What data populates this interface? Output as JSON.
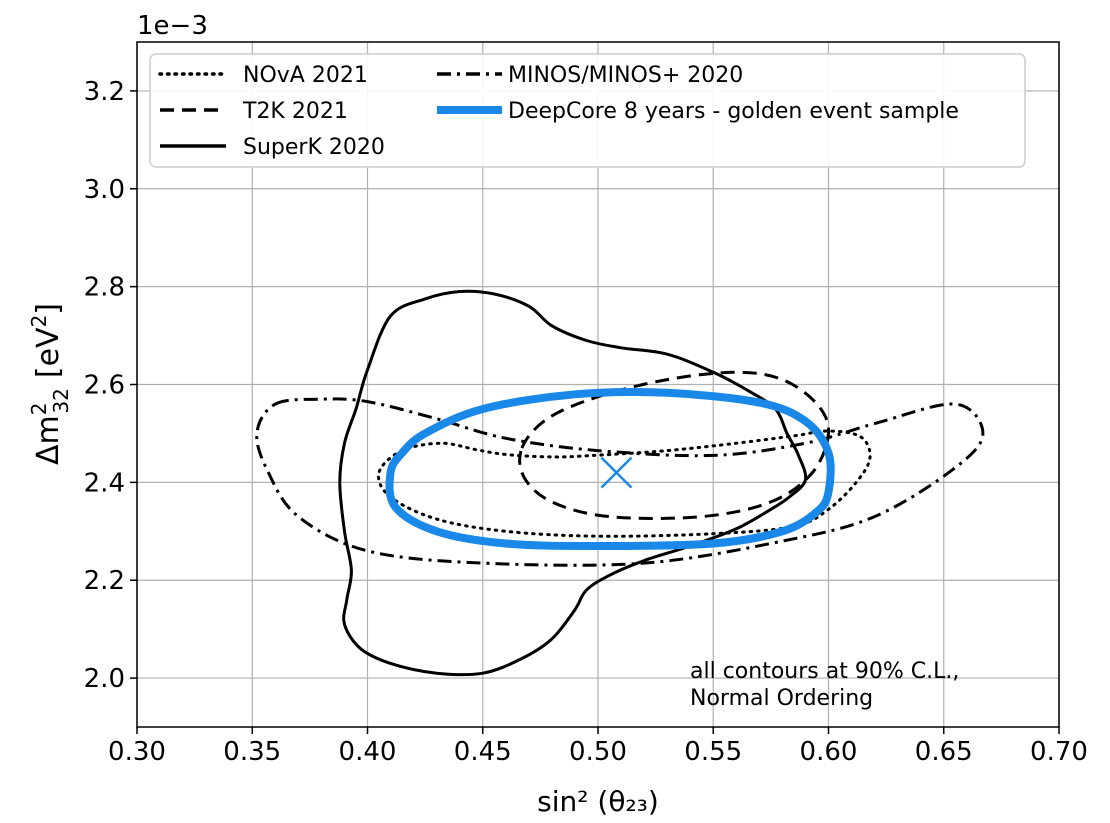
{
  "chart_data": {
    "type": "line",
    "xlabel": "sin² (θ₂₃)",
    "ylabel_main": "Δm",
    "ylabel_sup": "2",
    "ylabel_sub": "32",
    "ylabel_unit_open": "[eV",
    "ylabel_unit_sup": "2",
    "ylabel_unit_close": "]",
    "offset_text": "1e−3",
    "xlim": [
      0.3,
      0.7
    ],
    "ylim": [
      1.9,
      3.3
    ],
    "grid": true,
    "xticks": [
      0.3,
      0.35,
      0.4,
      0.45,
      0.5,
      0.55,
      0.6,
      0.65,
      0.7
    ],
    "xtick_labels": [
      "0.30",
      "0.35",
      "0.40",
      "0.45",
      "0.50",
      "0.55",
      "0.60",
      "0.65",
      "0.70"
    ],
    "yticks": [
      2.0,
      2.2,
      2.4,
      2.6,
      2.8,
      3.0,
      3.2
    ],
    "ytick_labels": [
      "2.0",
      "2.2",
      "2.4",
      "2.6",
      "2.8",
      "3.0",
      "3.2"
    ],
    "legend_position": "top",
    "annotation": [
      "all contours at 90% C.L.,",
      "Normal Ordering"
    ],
    "best_fit": {
      "x": 0.508,
      "y": 2.42,
      "marker": "x",
      "color": "#1a88e8"
    },
    "series": [
      {
        "name": "NOvA 2021",
        "style": "dotted",
        "color": "#000000",
        "points": [
          [
            0.498,
            2.455
          ],
          [
            0.53,
            2.465
          ],
          [
            0.56,
            2.48
          ],
          [
            0.585,
            2.495
          ],
          [
            0.6,
            2.505
          ],
          [
            0.614,
            2.493
          ],
          [
            0.618,
            2.45
          ],
          [
            0.612,
            2.4
          ],
          [
            0.6,
            2.345
          ],
          [
            0.585,
            2.31
          ],
          [
            0.55,
            2.295
          ],
          [
            0.5,
            2.29
          ],
          [
            0.46,
            2.3
          ],
          [
            0.43,
            2.325
          ],
          [
            0.41,
            2.37
          ],
          [
            0.405,
            2.42
          ],
          [
            0.415,
            2.465
          ],
          [
            0.432,
            2.48
          ],
          [
            0.447,
            2.467
          ],
          [
            0.46,
            2.457
          ],
          [
            0.48,
            2.452
          ],
          [
            0.498,
            2.455
          ]
        ]
      },
      {
        "name": "T2K 2021",
        "style": "dashed",
        "color": "#000000",
        "points": [
          [
            0.467,
            2.47
          ],
          [
            0.478,
            2.53
          ],
          [
            0.5,
            2.575
          ],
          [
            0.53,
            2.61
          ],
          [
            0.56,
            2.625
          ],
          [
            0.58,
            2.61
          ],
          [
            0.595,
            2.56
          ],
          [
            0.6,
            2.5
          ],
          [
            0.593,
            2.42
          ],
          [
            0.575,
            2.36
          ],
          [
            0.545,
            2.33
          ],
          [
            0.505,
            2.33
          ],
          [
            0.48,
            2.36
          ],
          [
            0.468,
            2.41
          ],
          [
            0.467,
            2.47
          ]
        ]
      },
      {
        "name": "SuperK 2020",
        "style": "solid",
        "color": "#000000",
        "points": [
          [
            0.41,
            2.74
          ],
          [
            0.425,
            2.775
          ],
          [
            0.44,
            2.79
          ],
          [
            0.455,
            2.785
          ],
          [
            0.47,
            2.76
          ],
          [
            0.48,
            2.72
          ],
          [
            0.495,
            2.69
          ],
          [
            0.51,
            2.675
          ],
          [
            0.53,
            2.662
          ],
          [
            0.55,
            2.625
          ],
          [
            0.566,
            2.585
          ],
          [
            0.577,
            2.55
          ],
          [
            0.582,
            2.5
          ],
          [
            0.587,
            2.455
          ],
          [
            0.59,
            2.405
          ],
          [
            0.583,
            2.37
          ],
          [
            0.575,
            2.345
          ],
          [
            0.56,
            2.305
          ],
          [
            0.54,
            2.27
          ],
          [
            0.52,
            2.24
          ],
          [
            0.505,
            2.21
          ],
          [
            0.495,
            2.18
          ],
          [
            0.49,
            2.14
          ],
          [
            0.48,
            2.08
          ],
          [
            0.467,
            2.04
          ],
          [
            0.45,
            2.01
          ],
          [
            0.43,
            2.01
          ],
          [
            0.41,
            2.03
          ],
          [
            0.397,
            2.06
          ],
          [
            0.39,
            2.11
          ],
          [
            0.391,
            2.16
          ],
          [
            0.393,
            2.22
          ],
          [
            0.39,
            2.3
          ],
          [
            0.388,
            2.4
          ],
          [
            0.39,
            2.48
          ],
          [
            0.395,
            2.55
          ],
          [
            0.4,
            2.63
          ],
          [
            0.41,
            2.74
          ]
        ]
      },
      {
        "name": "MINOS/MINOS+ 2020",
        "style": "dashdot",
        "color": "#000000",
        "points": [
          [
            0.36,
            2.56
          ],
          [
            0.38,
            2.57
          ],
          [
            0.4,
            2.565
          ],
          [
            0.43,
            2.53
          ],
          [
            0.46,
            2.49
          ],
          [
            0.5,
            2.465
          ],
          [
            0.55,
            2.455
          ],
          [
            0.59,
            2.48
          ],
          [
            0.62,
            2.52
          ],
          [
            0.655,
            2.56
          ],
          [
            0.667,
            2.5
          ],
          [
            0.655,
            2.43
          ],
          [
            0.62,
            2.33
          ],
          [
            0.58,
            2.28
          ],
          [
            0.52,
            2.235
          ],
          [
            0.45,
            2.235
          ],
          [
            0.4,
            2.26
          ],
          [
            0.37,
            2.33
          ],
          [
            0.357,
            2.42
          ],
          [
            0.352,
            2.5
          ],
          [
            0.36,
            2.56
          ]
        ]
      },
      {
        "name": "DeepCore 8 years - golden event sample",
        "style": "solid-thick",
        "color": "#1a88e8",
        "points": [
          [
            0.41,
            2.42
          ],
          [
            0.415,
            2.46
          ],
          [
            0.425,
            2.5
          ],
          [
            0.45,
            2.55
          ],
          [
            0.49,
            2.58
          ],
          [
            0.53,
            2.583
          ],
          [
            0.57,
            2.563
          ],
          [
            0.59,
            2.525
          ],
          [
            0.6,
            2.46
          ],
          [
            0.6,
            2.38
          ],
          [
            0.595,
            2.34
          ],
          [
            0.58,
            2.3
          ],
          [
            0.55,
            2.275
          ],
          [
            0.5,
            2.27
          ],
          [
            0.46,
            2.275
          ],
          [
            0.43,
            2.3
          ],
          [
            0.412,
            2.35
          ],
          [
            0.41,
            2.42
          ]
        ]
      }
    ]
  }
}
